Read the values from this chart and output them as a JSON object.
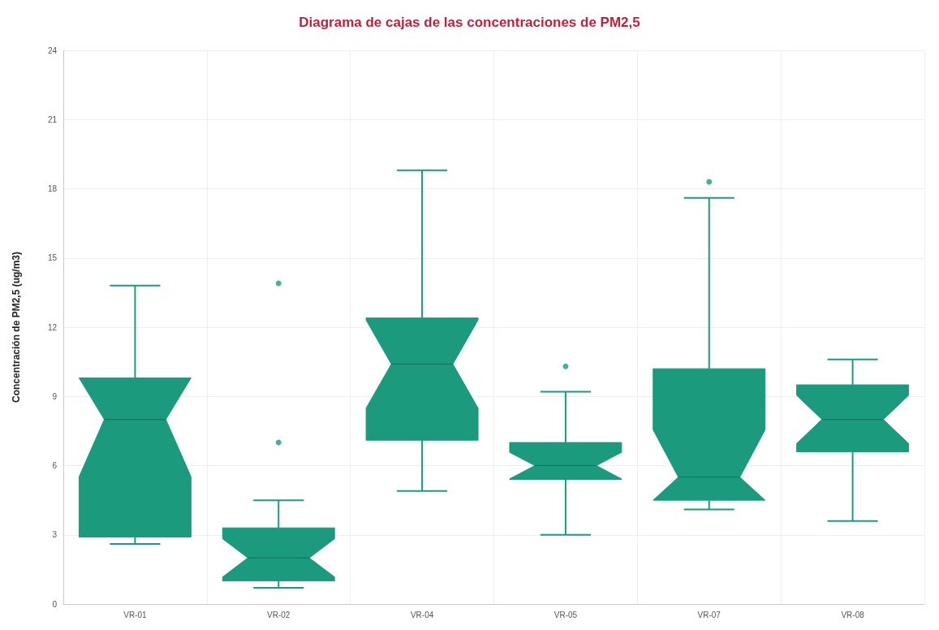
{
  "chart_data": {
    "type": "box",
    "title": "Diagrama de cajas de las concentraciones de PM2,5",
    "ylabel": "Concentración de PM2,5 (ug/m3)",
    "categories": [
      "VR-01",
      "VR-02",
      "VR-04",
      "VR-05",
      "VR-07",
      "VR-08"
    ],
    "series": [
      {
        "color": "#1b9a7e",
        "boxes": [
          {
            "low": 2.6,
            "q1": 2.9,
            "median": 8.0,
            "q3": 9.8,
            "high": 13.8
          },
          {
            "low": 0.7,
            "q1": 1.0,
            "median": 2.0,
            "q3": 3.3,
            "high": 4.5,
            "outliers": [
              7.0,
              13.9
            ]
          },
          {
            "low": 4.9,
            "q1": 7.1,
            "median": 10.4,
            "q3": 12.4,
            "high": 18.8
          },
          {
            "low": 3.0,
            "q1": 5.4,
            "median": 6.0,
            "q3": 7.0,
            "high": 9.2,
            "outliers": [
              10.3
            ]
          },
          {
            "low": 4.1,
            "q1": 4.5,
            "median": 5.5,
            "q3": 10.2,
            "high": 17.6,
            "outliers": [
              18.3
            ]
          },
          {
            "low": 3.6,
            "q1": 6.6,
            "median": 8.0,
            "q3": 9.5,
            "high": 10.6
          }
        ]
      }
    ],
    "ylim": [
      0,
      24
    ],
    "yticks": [
      0,
      3,
      6,
      9,
      12,
      15,
      18,
      21,
      24
    ],
    "grid": true
  }
}
